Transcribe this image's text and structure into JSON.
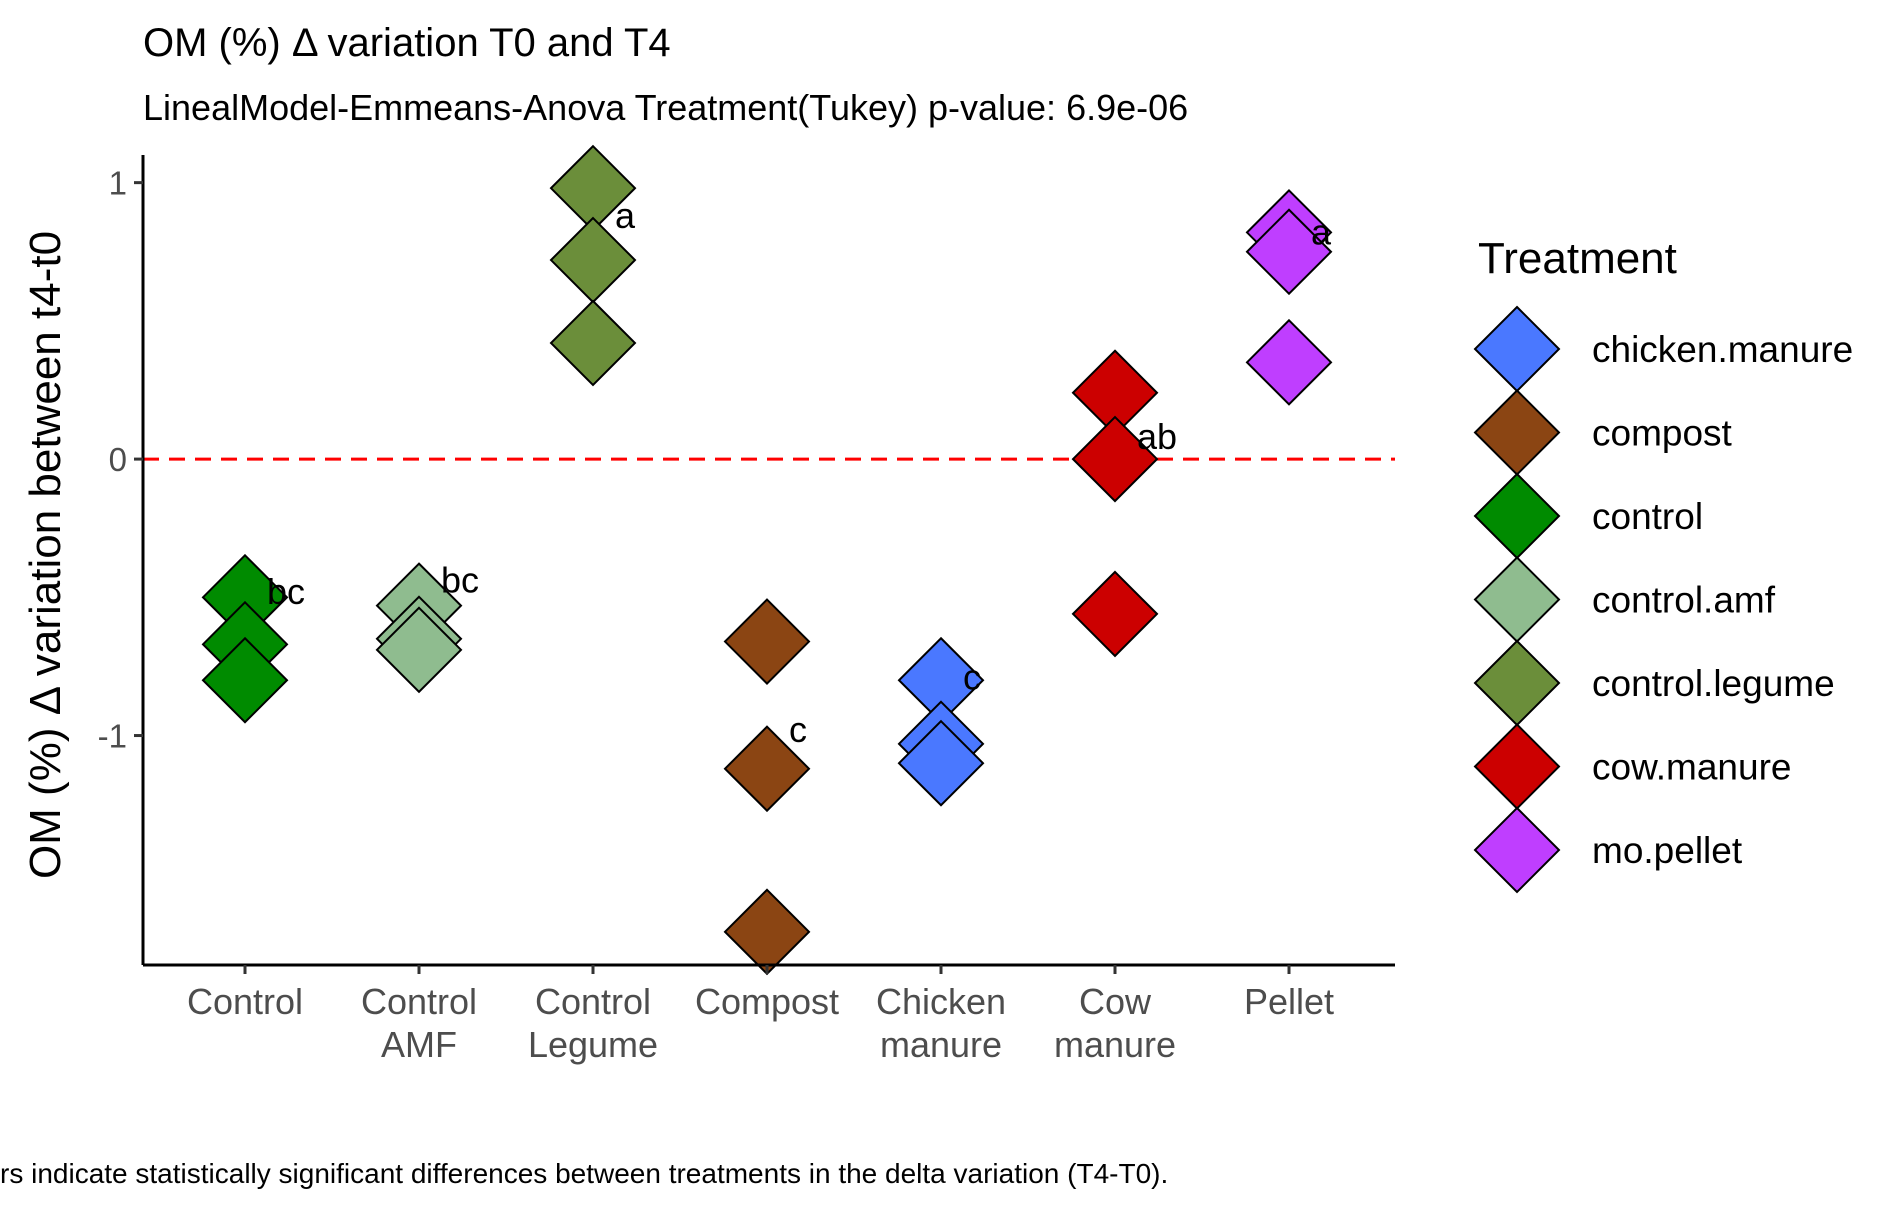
{
  "chart_data": {
    "type": "scatter",
    "title": "OM (%) Δ variation T0 and T4",
    "subtitle": "LinealModel-Emmeans-Anova Treatment(Tukey) p-value: 6.9e-06",
    "ylabel": "OM (%) Δ variation between t4-t0",
    "xlabel": "",
    "caption": "rs indicate statistically significant differences between treatments in the delta variation (T4-T0).",
    "ylim": [
      -1.83,
      1.1
    ],
    "yticks": [
      1,
      0,
      -1
    ],
    "reference_line": 0,
    "reference_line_color": "#ff0000",
    "grid": false,
    "legend_title": "Treatment",
    "legend_position": "right",
    "categories": [
      [
        "Control"
      ],
      [
        "Control",
        "AMF"
      ],
      [
        "Control",
        "Legume"
      ],
      [
        "Compost"
      ],
      [
        "Chicken",
        "manure"
      ],
      [
        "Cow",
        "manure"
      ],
      [
        "Pellet"
      ]
    ],
    "series": [
      {
        "name": "control",
        "color": "#008b00",
        "category_index": 0,
        "values": [
          -0.5,
          -0.67,
          -0.8
        ],
        "letter": "bc",
        "letter_y": -0.48
      },
      {
        "name": "control.amf",
        "color": "#8fbc8f",
        "category_index": 1,
        "values": [
          -0.53,
          -0.65,
          -0.69
        ],
        "letter": "bc",
        "letter_y": -0.44
      },
      {
        "name": "control.legume",
        "color": "#6b8e3a",
        "category_index": 2,
        "values": [
          0.98,
          0.72,
          0.42
        ],
        "letter": "a",
        "letter_y": 0.88
      },
      {
        "name": "compost",
        "color": "#8b4513",
        "category_index": 3,
        "values": [
          -0.66,
          -1.12,
          -1.71
        ],
        "letter": "c",
        "letter_y": -0.98
      },
      {
        "name": "chicken.manure",
        "color": "#4a78ff",
        "category_index": 4,
        "values": [
          -0.8,
          -1.03,
          -1.1
        ],
        "letter": "c",
        "letter_y": -0.79
      },
      {
        "name": "cow.manure",
        "color": "#cc0000",
        "category_index": 5,
        "values": [
          0.24,
          0.0,
          -0.56
        ],
        "letter": "ab",
        "letter_y": 0.08
      },
      {
        "name": "mo.pellet",
        "color": "#bf3eff",
        "category_index": 6,
        "values": [
          0.82,
          0.75,
          0.35
        ],
        "letter": "a",
        "letter_y": 0.82
      }
    ]
  }
}
